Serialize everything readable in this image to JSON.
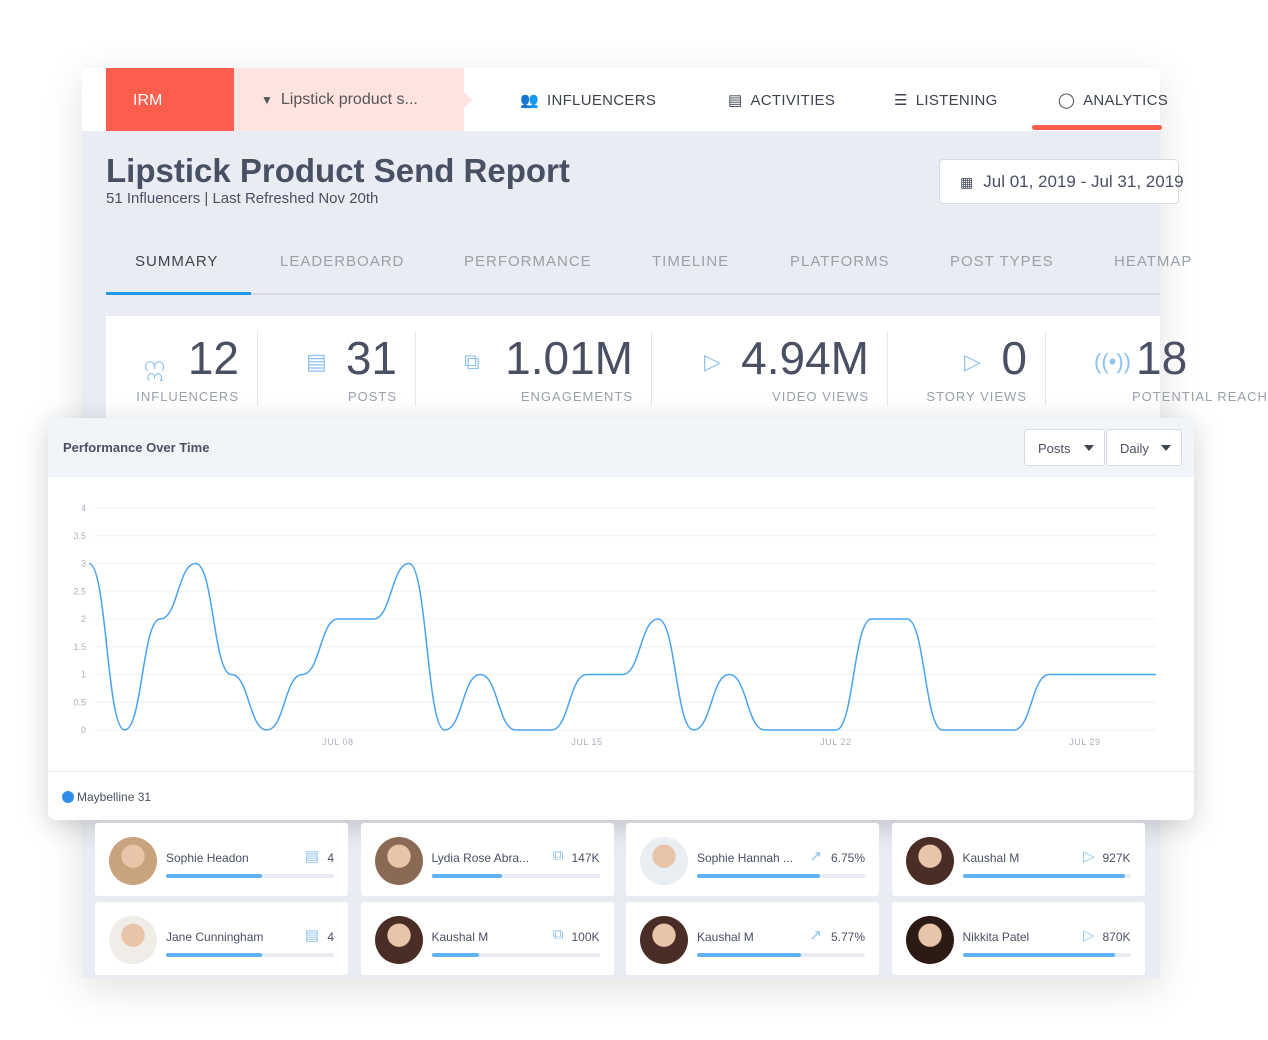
{
  "topbar": {
    "brand": "IRM",
    "project": "Lipstick product s...",
    "nav": [
      {
        "label": "INFLUENCERS",
        "icon": "people-icon"
      },
      {
        "label": "ACTIVITIES",
        "icon": "document-icon"
      },
      {
        "label": "LISTENING",
        "icon": "list-icon"
      },
      {
        "label": "ANALYTICS",
        "icon": "analytics-ring-icon"
      }
    ]
  },
  "report": {
    "title": "Lipstick Product Send Report",
    "subtitle": "51 Influencers | Last Refreshed Nov 20th",
    "date_range": "Jul 01, 2019 - Jul 31, 2019"
  },
  "tabs": [
    "SUMMARY",
    "LEADERBOARD",
    "PERFORMANCE",
    "TIMELINE",
    "PLATFORMS",
    "POST TYPES",
    "HEATMAP"
  ],
  "stats": [
    {
      "value": "12",
      "label": "INFLUENCERS",
      "icon": "influencers-icon"
    },
    {
      "value": "31",
      "label": "POSTS",
      "icon": "post-icon"
    },
    {
      "value": "1.01M",
      "label": "ENGAGEMENTS",
      "icon": "chat-icon"
    },
    {
      "value": "4.94M",
      "label": "VIDEO VIEWS",
      "icon": "play-icon"
    },
    {
      "value": "0",
      "label": "STORY VIEWS",
      "icon": "play-icon"
    },
    {
      "value": "18",
      "label": "POTENTIAL REACH",
      "icon": "broadcast-icon"
    }
  ],
  "chart_card": {
    "title": "Performance Over Time",
    "metric_select": "Posts",
    "interval_select": "Daily"
  },
  "chart_data": {
    "type": "line",
    "title": "Performance Over Time",
    "x_tick_labels": [
      "JUL 08",
      "JUL 15",
      "JUL 22",
      "JUL 29"
    ],
    "x_start": "Jul 01",
    "x_end": "Jul 31",
    "ylim": [
      0,
      4
    ],
    "y_ticks": [
      "0",
      "0.5",
      "1",
      "1.5",
      "2",
      "2.5",
      "3",
      "3.5",
      "4"
    ],
    "grid": true,
    "legend": "bottom-left",
    "series": [
      {
        "name": "Maybelline 31",
        "color": "#4aa3ef",
        "values": [
          3,
          0,
          2,
          3,
          1,
          0,
          1,
          2,
          2,
          3,
          0,
          1,
          0,
          0,
          1,
          1,
          2,
          0,
          1,
          0,
          0,
          0,
          2,
          2,
          0,
          0,
          0,
          1,
          1,
          1,
          1
        ]
      }
    ]
  },
  "legend_label": "Maybelline 31",
  "leaders": [
    {
      "name": "Sophie Headon",
      "value": "4",
      "icon": "post-icon",
      "progress": 0.57
    },
    {
      "name": "Lydia Rose Abra...",
      "value": "147K",
      "icon": "chat-icon",
      "progress": 0.42
    },
    {
      "name": "Sophie Hannah ...",
      "value": "6.75%",
      "icon": "trend-icon",
      "progress": 0.73
    },
    {
      "name": "Kaushal M",
      "value": "927K",
      "icon": "play-icon",
      "progress": 0.97
    },
    {
      "name": "Jane Cunningham",
      "value": "4",
      "icon": "post-icon",
      "progress": 0.57
    },
    {
      "name": "Kaushal M",
      "value": "100K",
      "icon": "chat-icon",
      "progress": 0.28
    },
    {
      "name": "Kaushal M",
      "value": "5.77%",
      "icon": "trend-icon",
      "progress": 0.62
    },
    {
      "name": "Nikkita Patel",
      "value": "870K",
      "icon": "play-icon",
      "progress": 0.91
    }
  ]
}
